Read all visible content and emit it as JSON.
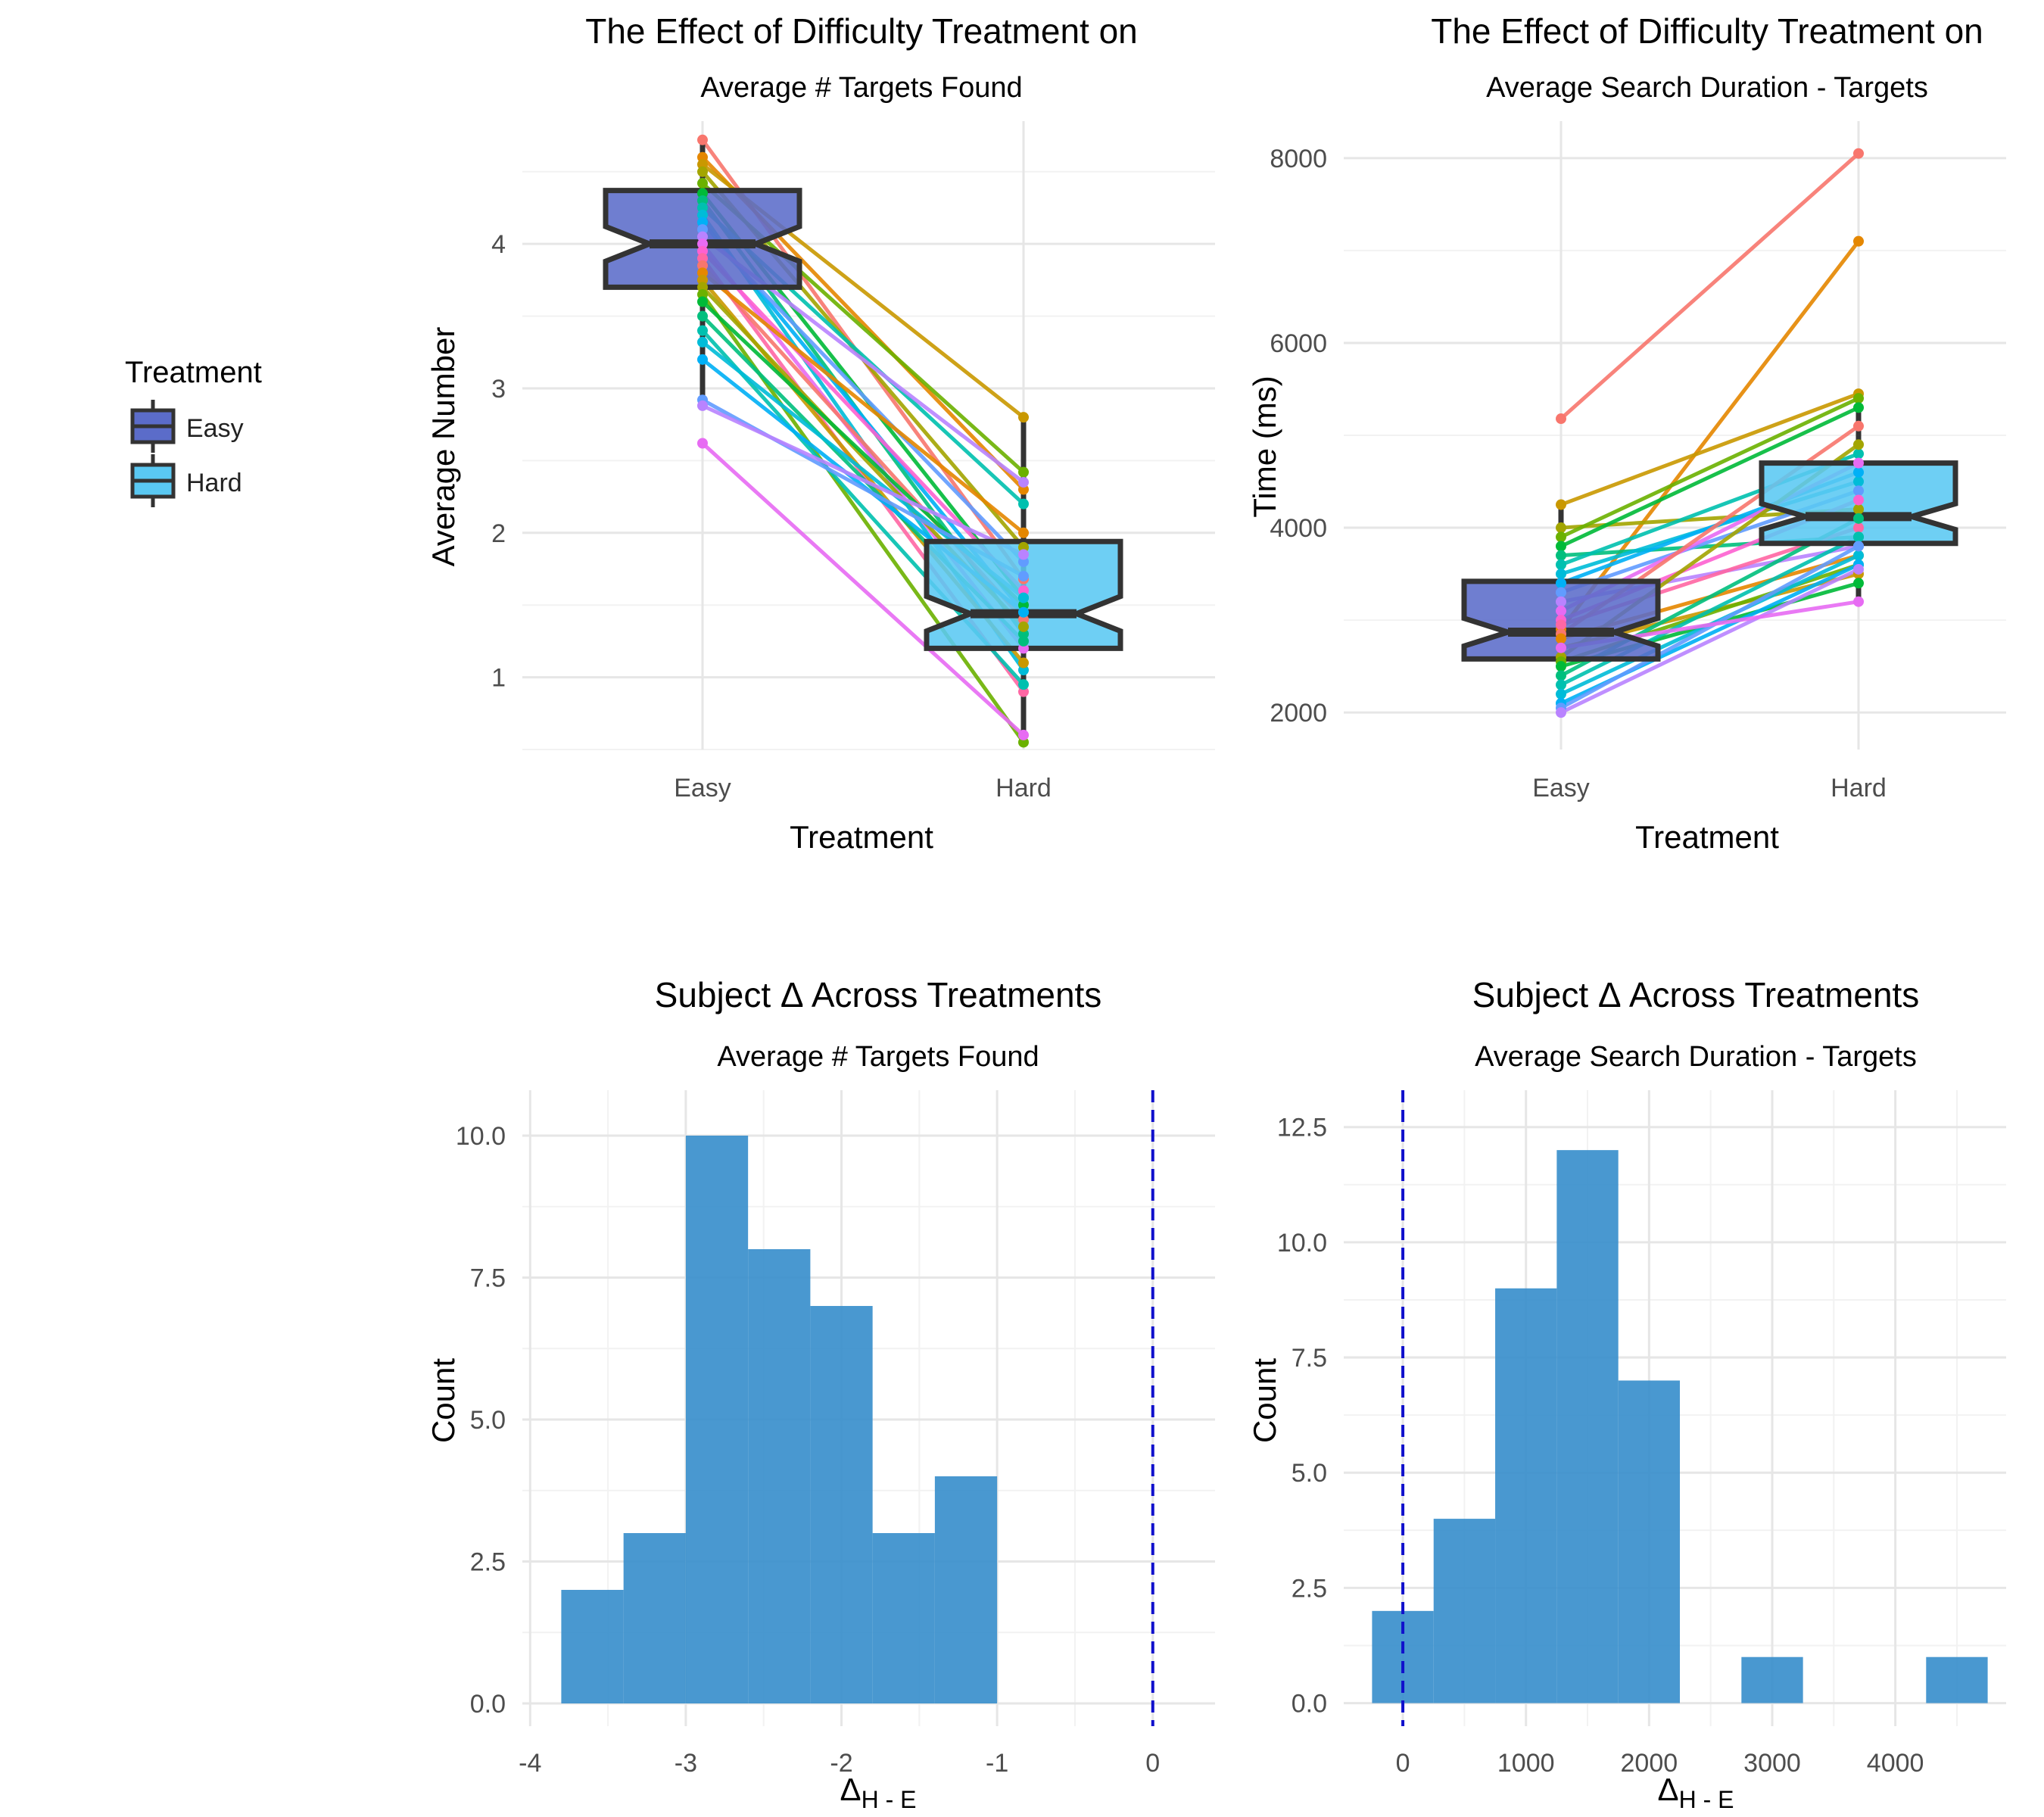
{
  "legend": {
    "title": "Treatment",
    "items": [
      {
        "label": "Easy",
        "color": "#5B6CC9"
      },
      {
        "label": "Hard",
        "color": "#5AC8F2"
      }
    ]
  },
  "chart_data": [
    {
      "id": "panel-top-left",
      "type": "box+line",
      "title": "The Effect of Difficulty Treatment on",
      "subtitle": "Average # Targets Found",
      "xlabel": "Treatment",
      "ylabel": "Average Number",
      "categories": [
        "Easy",
        "Hard"
      ],
      "ylim": [
        0.5,
        4.85
      ],
      "yticks": [
        1,
        2,
        3,
        4
      ],
      "grid": true,
      "boxes": [
        {
          "category": "Easy",
          "min": 2.95,
          "q1": 3.7,
          "median": 4.0,
          "q3": 4.37,
          "max": 4.75,
          "notch_low": 3.88,
          "notch_high": 4.12
        },
        {
          "category": "Hard",
          "min": 0.55,
          "q1": 1.2,
          "median": 1.44,
          "q3": 1.94,
          "max": 2.8,
          "notch_low": 1.32,
          "notch_high": 1.56
        }
      ],
      "subjects": [
        {
          "easy": 4.72,
          "hard": 1.68
        },
        {
          "easy": 4.6,
          "hard": 2.3
        },
        {
          "easy": 4.55,
          "hard": 2.8
        },
        {
          "easy": 4.5,
          "hard": 1.9
        },
        {
          "easy": 4.42,
          "hard": 2.42
        },
        {
          "easy": 4.35,
          "hard": 1.55
        },
        {
          "easy": 4.3,
          "hard": 1.3
        },
        {
          "easy": 4.25,
          "hard": 2.2
        },
        {
          "easy": 4.2,
          "hard": 1.05
        },
        {
          "easy": 4.15,
          "hard": 1.45
        },
        {
          "easy": 4.1,
          "hard": 1.8
        },
        {
          "easy": 4.05,
          "hard": 2.35
        },
        {
          "easy": 4.0,
          "hard": 1.2
        },
        {
          "easy": 3.95,
          "hard": 1.6
        },
        {
          "easy": 3.9,
          "hard": 0.9
        },
        {
          "easy": 3.85,
          "hard": 1.4
        },
        {
          "easy": 3.8,
          "hard": 2.0
        },
        {
          "easy": 3.75,
          "hard": 1.1
        },
        {
          "easy": 3.7,
          "hard": 1.35
        },
        {
          "easy": 3.65,
          "hard": 0.55
        },
        {
          "easy": 3.6,
          "hard": 1.5
        },
        {
          "easy": 3.5,
          "hard": 1.25
        },
        {
          "easy": 3.4,
          "hard": 0.95
        },
        {
          "easy": 3.32,
          "hard": 1.55
        },
        {
          "easy": 3.2,
          "hard": 1.45
        },
        {
          "easy": 2.92,
          "hard": 1.7
        },
        {
          "easy": 2.88,
          "hard": 1.85
        },
        {
          "easy": 2.62,
          "hard": 0.6
        }
      ]
    },
    {
      "id": "panel-top-right",
      "type": "box+line",
      "title": "The Effect of Difficulty Treatment on",
      "subtitle": "Average Search Duration - Targets",
      "xlabel": "Treatment",
      "ylabel": "Time (ms)",
      "categories": [
        "Easy",
        "Hard"
      ],
      "ylim": [
        1600,
        8400
      ],
      "yticks": [
        2000,
        4000,
        6000,
        8000
      ],
      "grid": true,
      "boxes": [
        {
          "category": "Easy",
          "min": 2000,
          "q1": 2580,
          "median": 2870,
          "q3": 3420,
          "max": 4250,
          "notch_low": 2720,
          "notch_high": 3020
        },
        {
          "category": "Hard",
          "min": 3200,
          "q1": 3830,
          "median": 4120,
          "q3": 4700,
          "max": 5420,
          "notch_low": 3980,
          "notch_high": 4260
        }
      ],
      "subjects": [
        {
          "easy": 5180,
          "hard": 8050
        },
        {
          "easy": 2900,
          "hard": 7100
        },
        {
          "easy": 4250,
          "hard": 5450
        },
        {
          "easy": 4000,
          "hard": 4200
        },
        {
          "easy": 3900,
          "hard": 5400
        },
        {
          "easy": 3800,
          "hard": 5300
        },
        {
          "easy": 3700,
          "hard": 3900
        },
        {
          "easy": 3600,
          "hard": 4800
        },
        {
          "easy": 3500,
          "hard": 4500
        },
        {
          "easy": 3400,
          "hard": 4600
        },
        {
          "easy": 3300,
          "hard": 4400
        },
        {
          "easy": 3200,
          "hard": 3800
        },
        {
          "easy": 3100,
          "hard": 4700
        },
        {
          "easy": 3000,
          "hard": 4300
        },
        {
          "easy": 2950,
          "hard": 4000
        },
        {
          "easy": 2850,
          "hard": 5100
        },
        {
          "easy": 2800,
          "hard": 3700
        },
        {
          "easy": 2700,
          "hard": 3500
        },
        {
          "easy": 2600,
          "hard": 4900
        },
        {
          "easy": 2550,
          "hard": 3600
        },
        {
          "easy": 2500,
          "hard": 3400
        },
        {
          "easy": 2400,
          "hard": 4100
        },
        {
          "easy": 2300,
          "hard": 3900
        },
        {
          "easy": 2200,
          "hard": 3700
        },
        {
          "easy": 2100,
          "hard": 3600
        },
        {
          "easy": 2050,
          "hard": 3800
        },
        {
          "easy": 2000,
          "hard": 3550
        },
        {
          "easy": 2700,
          "hard": 3200
        }
      ]
    },
    {
      "id": "panel-bottom-left",
      "type": "histogram",
      "title": "Subject Δ Across Treatments",
      "subtitle": "Average # Targets Found",
      "xlabel_main": "Δ",
      "xlabel_sub": "H - E",
      "ylabel": "Count",
      "xlim": [
        -4.05,
        0.4
      ],
      "ylim": [
        -0.4,
        10.8
      ],
      "xticks": [
        -4,
        -3,
        -2,
        -1,
        0
      ],
      "yticks": [
        0.0,
        2.5,
        5.0,
        7.5,
        10.0
      ],
      "ytick_labels": [
        "0.0",
        "2.5",
        "5.0",
        "7.5",
        "10.0"
      ],
      "reference_line_x": 0,
      "reference_line_color": "#1010CC",
      "bar_color": "#3A8FCC",
      "bins": [
        {
          "x0": -3.8,
          "x1": -3.4,
          "count": 2
        },
        {
          "x0": -3.4,
          "x1": -3.0,
          "count": 3
        },
        {
          "x0": -3.0,
          "x1": -2.6,
          "count": 10
        },
        {
          "x0": -2.6,
          "x1": -2.2,
          "count": 8
        },
        {
          "x0": -2.2,
          "x1": -1.8,
          "count": 7
        },
        {
          "x0": -1.8,
          "x1": -1.4,
          "count": 3
        },
        {
          "x0": -1.4,
          "x1": -1.0,
          "count": 4
        }
      ]
    },
    {
      "id": "panel-bottom-right",
      "type": "histogram",
      "title": "Subject Δ Across Treatments",
      "subtitle": "Average Search Duration - Targets",
      "xlabel_main": "Δ",
      "xlabel_sub": "H - E",
      "ylabel": "Count",
      "xlim": [
        -480,
        4900
      ],
      "ylim": [
        -0.5,
        13.3
      ],
      "xticks": [
        0,
        1000,
        2000,
        3000,
        4000
      ],
      "yticks": [
        0.0,
        2.5,
        5.0,
        7.5,
        10.0,
        12.5
      ],
      "ytick_labels": [
        "0.0",
        "2.5",
        "5.0",
        "7.5",
        "10.0",
        "12.5"
      ],
      "reference_line_x": 0,
      "reference_line_color": "#1010CC",
      "bar_color": "#3A8FCC",
      "bins": [
        {
          "x0": -250,
          "x1": 250,
          "count": 2
        },
        {
          "x0": 250,
          "x1": 750,
          "count": 4
        },
        {
          "x0": 750,
          "x1": 1250,
          "count": 9
        },
        {
          "x0": 1250,
          "x1": 1750,
          "count": 12
        },
        {
          "x0": 1750,
          "x1": 2250,
          "count": 7
        },
        {
          "x0": 2250,
          "x1": 2750,
          "count": 0
        },
        {
          "x0": 2750,
          "x1": 3250,
          "count": 1
        },
        {
          "x0": 3250,
          "x1": 3750,
          "count": 0
        },
        {
          "x0": 3750,
          "x1": 4250,
          "count": 0
        },
        {
          "x0": 4250,
          "x1": 4750,
          "count": 1
        }
      ]
    }
  ],
  "line_palette": [
    "#F8766D",
    "#E58700",
    "#C99800",
    "#A3A500",
    "#6BB100",
    "#00BA38",
    "#00BF7D",
    "#00C0AF",
    "#00BCD8",
    "#00B0F6",
    "#619CFF",
    "#B983FF",
    "#E76BF3",
    "#FD61D1",
    "#FF67A4"
  ]
}
